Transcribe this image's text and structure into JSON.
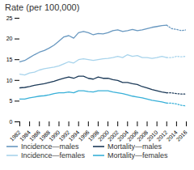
{
  "chart_data": {
    "type": "line",
    "title": "Rate (per 100,000)",
    "x": [
      1982,
      1983,
      1984,
      1985,
      1986,
      1987,
      1988,
      1989,
      1990,
      1991,
      1992,
      1993,
      1994,
      1995,
      1996,
      1997,
      1998,
      1999,
      2000,
      2001,
      2002,
      2003,
      2004,
      2005,
      2006,
      2007,
      2008,
      2009,
      2010,
      2011,
      2012,
      2013,
      2014,
      2015,
      2016
    ],
    "xlim": [
      1982,
      2016
    ],
    "xticks": [
      1982,
      1984,
      1986,
      1988,
      1990,
      1992,
      1994,
      1996,
      1998,
      2000,
      2002,
      2004,
      2006,
      2008,
      2010,
      2012,
      2014,
      2016
    ],
    "ylim": [
      0,
      25
    ],
    "yticks": [
      0,
      5,
      10,
      15,
      20,
      25
    ],
    "grid": false,
    "legend": "bottom",
    "series": [
      {
        "name": "Incidence—males",
        "color": "#6898c0",
        "line_style": "solid",
        "values": [
          14.5,
          14.8,
          15.5,
          16.2,
          16.8,
          17.2,
          17.8,
          18.5,
          19.5,
          20.5,
          20.8,
          20.2,
          21.5,
          21.8,
          21.5,
          21.0,
          21.3,
          21.2,
          21.5,
          22.0,
          22.2,
          21.8,
          22.0,
          22.3,
          22.0,
          22.2,
          22.5,
          22.8,
          23.0,
          23.2,
          23.3,
          null,
          null,
          null,
          null
        ],
        "projection": {
          "line_style": "dotted",
          "values": [
            null,
            null,
            null,
            null,
            null,
            null,
            null,
            null,
            null,
            null,
            null,
            null,
            null,
            null,
            null,
            null,
            null,
            null,
            null,
            null,
            null,
            null,
            null,
            null,
            null,
            null,
            null,
            null,
            null,
            null,
            23.3,
            22.5,
            22.3,
            22.0,
            22.2
          ]
        }
      },
      {
        "name": "Incidence—females",
        "color": "#a8d4ec",
        "line_style": "solid",
        "values": [
          11.5,
          11.3,
          11.8,
          12.0,
          12.5,
          12.8,
          13.0,
          13.2,
          13.5,
          14.0,
          14.5,
          14.2,
          15.0,
          15.2,
          15.0,
          14.8,
          15.0,
          15.2,
          15.3,
          15.5,
          15.8,
          15.5,
          16.2,
          15.8,
          16.0,
          15.5,
          15.5,
          15.3,
          15.5,
          15.8,
          15.5,
          null,
          null,
          null,
          null
        ],
        "projection": {
          "line_style": "dotted",
          "values": [
            null,
            null,
            null,
            null,
            null,
            null,
            null,
            null,
            null,
            null,
            null,
            null,
            null,
            null,
            null,
            null,
            null,
            null,
            null,
            null,
            null,
            null,
            null,
            null,
            null,
            null,
            null,
            null,
            null,
            null,
            15.5,
            15.5,
            15.8,
            15.7,
            15.8
          ]
        }
      },
      {
        "name": "Mortality—males",
        "color": "#1c3a58",
        "line_style": "solid",
        "values": [
          8.2,
          8.3,
          8.5,
          8.8,
          9.0,
          9.2,
          9.5,
          9.8,
          10.2,
          10.5,
          10.8,
          10.5,
          11.0,
          11.0,
          10.5,
          10.3,
          10.8,
          10.5,
          10.5,
          10.2,
          10.0,
          9.5,
          9.5,
          9.2,
          9.0,
          8.5,
          8.2,
          7.8,
          7.5,
          7.2,
          7.0,
          null,
          null,
          null,
          null
        ],
        "projection": {
          "line_style": "dotted",
          "values": [
            null,
            null,
            null,
            null,
            null,
            null,
            null,
            null,
            null,
            null,
            null,
            null,
            null,
            null,
            null,
            null,
            null,
            null,
            null,
            null,
            null,
            null,
            null,
            null,
            null,
            null,
            null,
            null,
            null,
            null,
            7.0,
            7.0,
            6.8,
            6.7,
            6.7
          ]
        }
      },
      {
        "name": "Mortality—females",
        "color": "#38b0d8",
        "line_style": "solid",
        "values": [
          5.5,
          5.5,
          5.8,
          6.0,
          6.2,
          6.3,
          6.5,
          6.8,
          7.0,
          7.0,
          7.2,
          7.0,
          7.5,
          7.5,
          7.3,
          7.2,
          7.5,
          7.5,
          7.5,
          7.2,
          7.0,
          6.8,
          6.5,
          6.2,
          6.0,
          5.8,
          5.5,
          5.2,
          5.0,
          4.8,
          4.5,
          null,
          null,
          null,
          null
        ],
        "projection": {
          "line_style": "dotted",
          "values": [
            null,
            null,
            null,
            null,
            null,
            null,
            null,
            null,
            null,
            null,
            null,
            null,
            null,
            null,
            null,
            null,
            null,
            null,
            null,
            null,
            null,
            null,
            null,
            null,
            null,
            null,
            null,
            null,
            null,
            null,
            4.5,
            4.5,
            4.3,
            4.0,
            3.8
          ]
        }
      }
    ]
  }
}
